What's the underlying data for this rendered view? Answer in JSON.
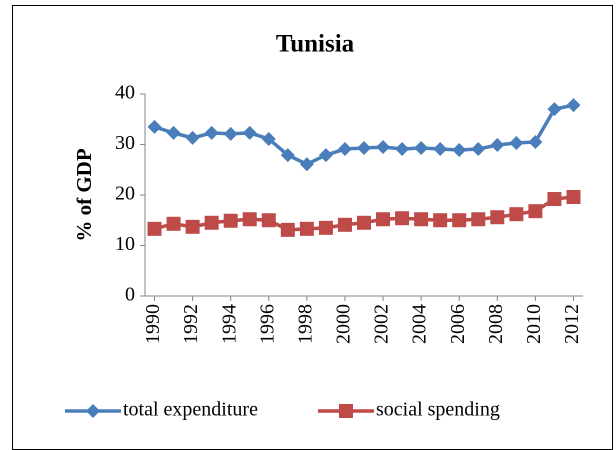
{
  "chart_data": {
    "type": "line",
    "title": "Tunisia",
    "y_label": "% of GDP",
    "x": [
      1990,
      1991,
      1992,
      1993,
      1994,
      1995,
      1996,
      1997,
      1998,
      1999,
      2000,
      2001,
      2002,
      2003,
      2004,
      2005,
      2006,
      2007,
      2008,
      2009,
      2010,
      2011,
      2012
    ],
    "series": [
      {
        "name": "total expenditure",
        "color": "#4a7ebb",
        "marker": "diamond",
        "values": [
          33.5,
          32.3,
          31.3,
          32.3,
          32.1,
          32.3,
          31.1,
          27.9,
          26.1,
          27.9,
          29.1,
          29.3,
          29.5,
          29.1,
          29.3,
          29.1,
          28.9,
          29.1,
          29.9,
          30.3,
          30.5,
          37.0,
          37.8
        ]
      },
      {
        "name": "social spending",
        "color": "#be4b48",
        "marker": "square",
        "values": [
          13.3,
          14.3,
          13.7,
          14.5,
          14.9,
          15.2,
          15.0,
          13.1,
          13.3,
          13.5,
          14.1,
          14.5,
          15.2,
          15.4,
          15.2,
          15.0,
          15.0,
          15.2,
          15.6,
          16.2,
          16.8,
          19.2,
          19.6
        ]
      }
    ],
    "xlim": [
      1989.5,
      2012.5
    ],
    "xticks": [
      1990,
      1992,
      1994,
      1996,
      1998,
      2000,
      2002,
      2004,
      2006,
      2008,
      2010,
      2012
    ],
    "ylim": [
      0,
      40
    ],
    "yticks": [
      0,
      10,
      20,
      30,
      40
    ],
    "grid": false,
    "legend": "bottom"
  }
}
